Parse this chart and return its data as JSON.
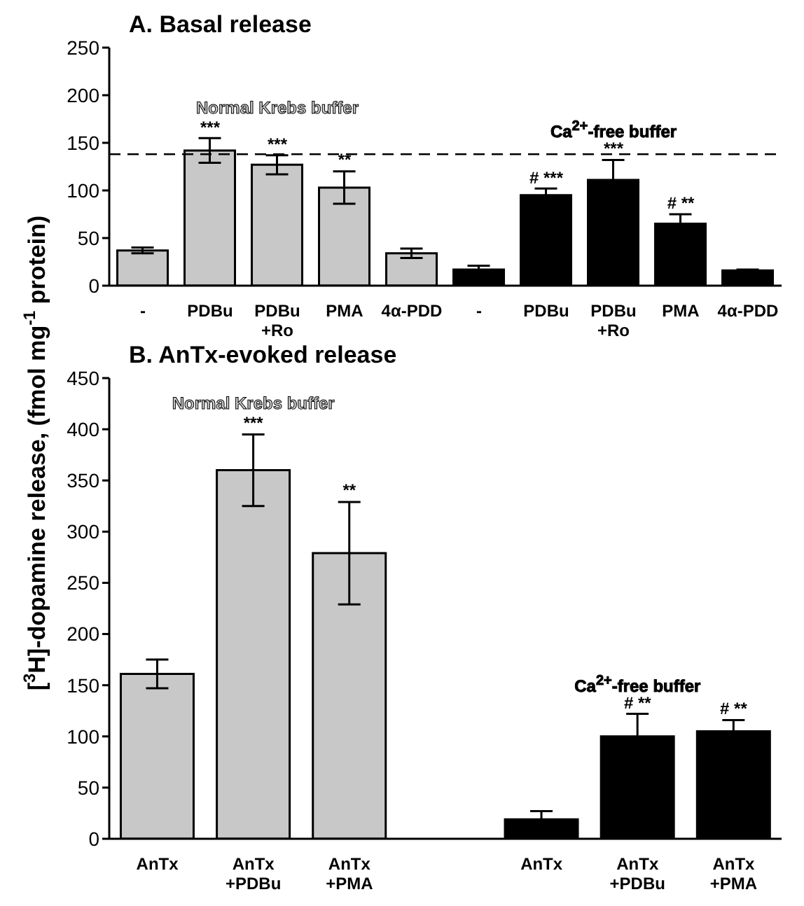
{
  "chart_data": [
    {
      "type": "bar",
      "title": "A.  Basal release",
      "ylabel": "[$^{3}$H]-dopamine release, (fmol mg$^{-1}$ protein)",
      "categories": [
        "-",
        "PDBu",
        "PDBu\n+Ro",
        "PMA",
        "4α-PDD",
        "-",
        "PDBu",
        "PDBu\n+Ro",
        "PMA",
        "4α-PDD"
      ],
      "series": [
        {
          "name": "Normal Krebs buffer",
          "color": "#c8c8c8",
          "values": [
            37,
            142,
            127,
            103,
            34,
            null,
            null,
            null,
            null,
            null
          ],
          "errors": [
            3,
            13,
            10,
            17,
            5,
            null,
            null,
            null,
            null,
            null
          ],
          "value_labels": [
            null,
            "***",
            "***",
            "**",
            null,
            null,
            null,
            null,
            null,
            null
          ]
        },
        {
          "name": "Ca$^{2+}$-free buffer",
          "color": "#000000",
          "values": [
            null,
            null,
            null,
            null,
            null,
            17,
            95,
            111,
            65,
            16
          ],
          "errors": [
            null,
            null,
            null,
            null,
            null,
            4,
            7,
            21,
            10,
            1
          ],
          "value_labels": [
            null,
            null,
            null,
            null,
            null,
            null,
            "# ***",
            "***",
            "# **",
            null
          ]
        }
      ],
      "ylim": [
        0,
        250
      ],
      "yticks": [
        0,
        50,
        100,
        150,
        200,
        250
      ],
      "ref_lines": [
        {
          "axis": "y",
          "value": 138,
          "color": "#000000",
          "line_style": "dashed"
        }
      ]
    },
    {
      "type": "bar",
      "title": "B.  AnTx-evoked release",
      "categories": [
        "AnTx",
        "AnTx\n+PDBu",
        "AnTx\n+PMA",
        null,
        "AnTx",
        "AnTx\n+PDBu",
        "AnTx\n+PMA"
      ],
      "series": [
        {
          "name": "Normal Krebs buffer",
          "color": "#c8c8c8",
          "values": [
            161,
            360,
            279,
            null,
            null,
            null,
            null
          ],
          "errors": [
            14,
            35,
            50,
            null,
            null,
            null,
            null
          ],
          "value_labels": [
            null,
            "***",
            "**",
            null,
            null,
            null,
            null
          ]
        },
        {
          "name": "Ca$^{2+}$-free buffer",
          "color": "#000000",
          "values": [
            null,
            null,
            null,
            null,
            19,
            100,
            105
          ],
          "errors": [
            null,
            null,
            null,
            null,
            8,
            22,
            11
          ],
          "value_labels": [
            null,
            null,
            null,
            null,
            null,
            "# **",
            "# **"
          ]
        }
      ],
      "ylim": [
        0,
        450
      ],
      "yticks": [
        0,
        50,
        100,
        150,
        200,
        250,
        300,
        350,
        400,
        450
      ]
    }
  ]
}
